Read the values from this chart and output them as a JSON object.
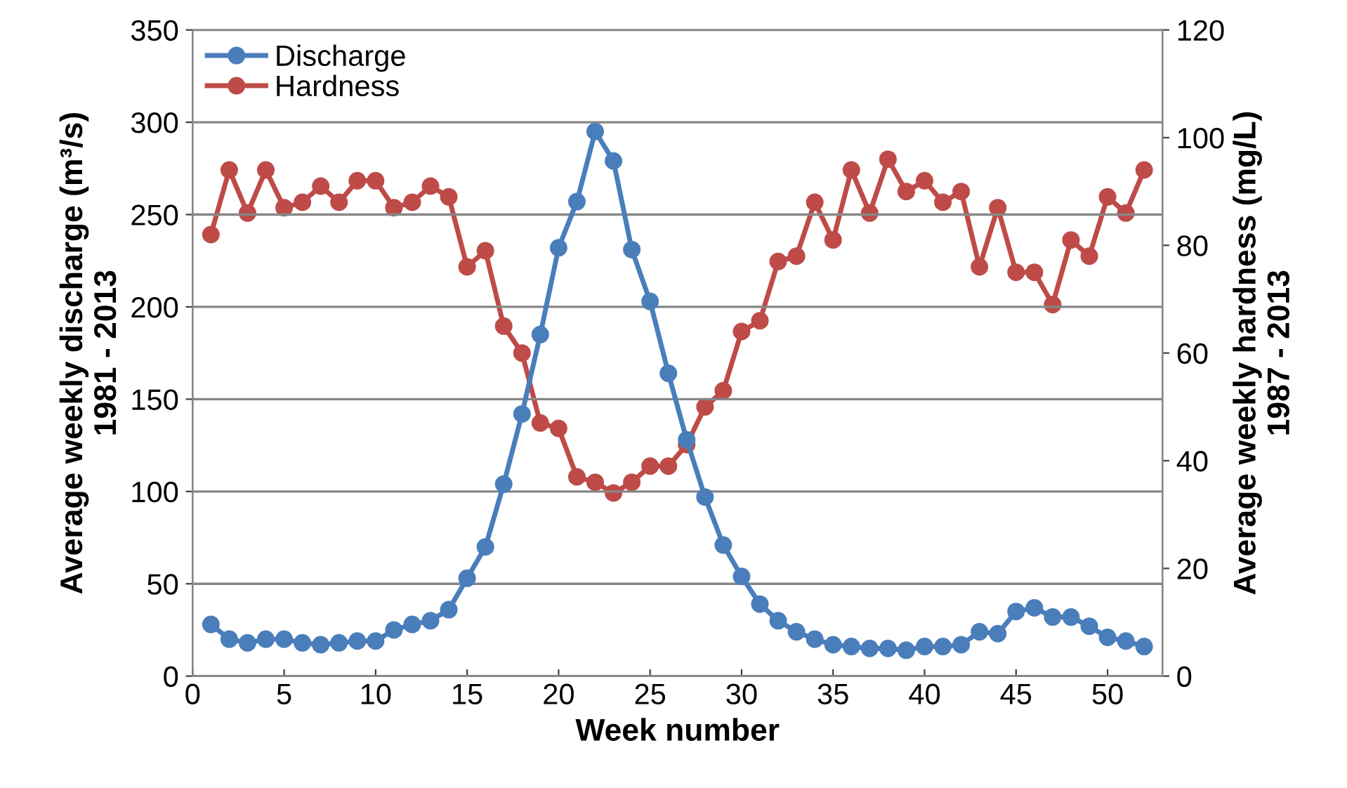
{
  "chart_data": {
    "type": "line",
    "xlabel": "Week number",
    "ylabel": "Average weekly discharge (m³/s)\n1981 - 2013",
    "y2label": "Average weekly hardness (mg/L)\n1987 - 2013",
    "x": [
      1,
      2,
      3,
      4,
      5,
      6,
      7,
      8,
      9,
      10,
      11,
      12,
      13,
      14,
      15,
      16,
      17,
      18,
      19,
      20,
      21,
      22,
      23,
      24,
      25,
      26,
      27,
      28,
      29,
      30,
      31,
      32,
      33,
      34,
      35,
      36,
      37,
      38,
      39,
      40,
      41,
      42,
      43,
      44,
      45,
      46,
      47,
      48,
      49,
      50,
      51,
      52
    ],
    "series": [
      {
        "name": "Discharge",
        "color": "#4a7ebb",
        "values": [
          28,
          20,
          18,
          20,
          20,
          18,
          17,
          18,
          19,
          19,
          25,
          28,
          30,
          36,
          53,
          70,
          104,
          142,
          185,
          232,
          257,
          295,
          279,
          231,
          203,
          164,
          128,
          97,
          71,
          54,
          39,
          30,
          24,
          20,
          17,
          16,
          15,
          15,
          14,
          16,
          16,
          17,
          24,
          23,
          35,
          37,
          32,
          32,
          27,
          21,
          19,
          16
        ]
      },
      {
        "name": "Hardness",
        "color": "#be4b48",
        "axis": "y2",
        "values": [
          82,
          94,
          86,
          94,
          87,
          88,
          91,
          88,
          92,
          92,
          87,
          88,
          91,
          89,
          76,
          79,
          65,
          60,
          47,
          46,
          37,
          36,
          34,
          36,
          39,
          39,
          43,
          50,
          53,
          64,
          66,
          77,
          78,
          88,
          81,
          94,
          86,
          96,
          90,
          92,
          88,
          90,
          76,
          87,
          75,
          75,
          69,
          81,
          78,
          89,
          86,
          94
        ]
      }
    ],
    "xlim": [
      0,
      53
    ],
    "xticks": [
      0,
      5,
      10,
      15,
      20,
      25,
      30,
      35,
      40,
      45,
      50
    ],
    "ylim": [
      0,
      350
    ],
    "yticks": [
      0,
      50,
      100,
      150,
      200,
      250,
      300,
      350
    ],
    "y2lim": [
      0,
      120
    ],
    "y2ticks": [
      0,
      20,
      40,
      60,
      80,
      100,
      120
    ],
    "grid": "y",
    "legend": "top left",
    "marker": "circle",
    "line_style": "solid"
  }
}
